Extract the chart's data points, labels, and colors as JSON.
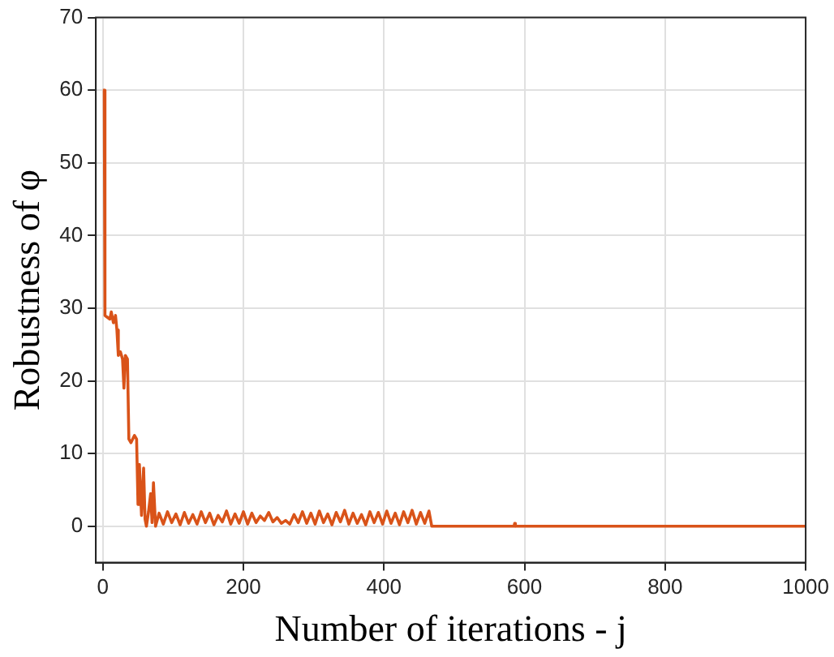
{
  "chart_data": {
    "type": "line",
    "xlabel": "Number of iterations - j",
    "ylabel": "Robustness of φ",
    "x": [
      0,
      2,
      3,
      10,
      12,
      15,
      18,
      20,
      22,
      25,
      28,
      30,
      32,
      35,
      37,
      40,
      45,
      48,
      50,
      52,
      55,
      58,
      60,
      62,
      65,
      68,
      70,
      72,
      75,
      80,
      86,
      92,
      98,
      104,
      110,
      116,
      122,
      128,
      134,
      140,
      146,
      152,
      158,
      164,
      170,
      176,
      182,
      188,
      194,
      200,
      206,
      212,
      218,
      224,
      230,
      236,
      242,
      248,
      254,
      260,
      266,
      272,
      278,
      284,
      290,
      296,
      302,
      308,
      314,
      320,
      326,
      332,
      338,
      344,
      350,
      356,
      362,
      368,
      374,
      380,
      386,
      392,
      398,
      404,
      410,
      416,
      422,
      428,
      434,
      440,
      446,
      452,
      458,
      464,
      468,
      585,
      586,
      587,
      1000
    ],
    "series": [
      {
        "color": "#d95319",
        "values": [
          60,
          60,
          29,
          28.5,
          29.5,
          28,
          29,
          27,
          23.5,
          24,
          23,
          19,
          23.5,
          23,
          12,
          11.5,
          12.5,
          12,
          3,
          8.5,
          1.5,
          8,
          1,
          0,
          2,
          4.5,
          0.5,
          6,
          0,
          1.8,
          0.3,
          2,
          0.5,
          1.7,
          0.2,
          1.9,
          0.4,
          1.6,
          0.3,
          2,
          0.5,
          1.8,
          0.2,
          1.5,
          0.6,
          2.1,
          0.3,
          1.7,
          0.4,
          2,
          0.3,
          1.8,
          0.5,
          1.4,
          0.8,
          1.9,
          0.6,
          1.2,
          0.4,
          0.8,
          0.3,
          1.6,
          0.5,
          2,
          0.4,
          1.8,
          0.3,
          2.1,
          0.5,
          1.7,
          0.2,
          1.9,
          0.6,
          2.2,
          0.3,
          1.8,
          0.4,
          1.6,
          0.2,
          2,
          0.5,
          1.9,
          0.3,
          2.1,
          0.4,
          1.8,
          0.2,
          2,
          0.5,
          2.2,
          0.3,
          1.9,
          0.4,
          2.1,
          0,
          0,
          0.4,
          0,
          0
        ]
      }
    ],
    "xlim": [
      -10,
      1000
    ],
    "xticks": [
      0,
      200,
      400,
      600,
      800,
      1000
    ],
    "ylim": [
      -5,
      70
    ],
    "yticks": [
      0,
      10,
      20,
      30,
      40,
      50,
      60,
      70
    ],
    "grid": true,
    "legend": false,
    "marker": "none",
    "line_style": "solid"
  }
}
